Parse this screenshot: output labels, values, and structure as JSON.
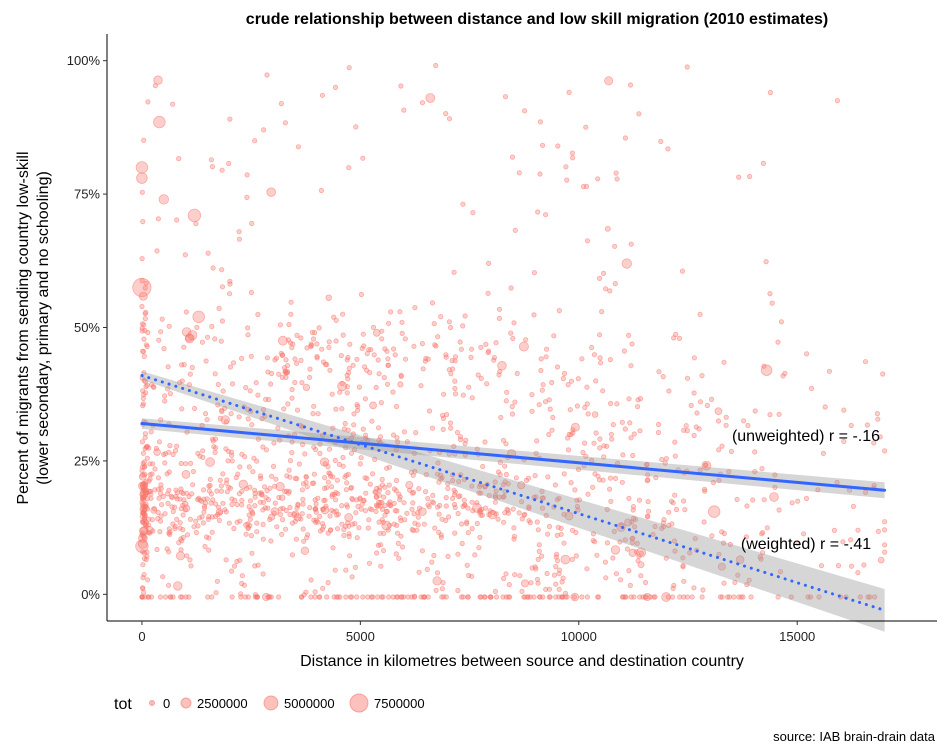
{
  "chart_data": {
    "type": "scatter",
    "title": "crude relationship between distance and low skill migration (2010 estimates)",
    "xlabel": "Distance in kilometres between source and destination country",
    "ylabel_lines": [
      "Percent of migrants from sending country low-skill",
      "(lower secondary, primary and no schooling)"
    ],
    "xlim": [
      -800,
      18200
    ],
    "ylim": [
      -0.05,
      1.05
    ],
    "x_ticks": [
      0,
      5000,
      10000,
      15000
    ],
    "x_tick_labels": [
      "0",
      "5000",
      "10000",
      "15000"
    ],
    "y_ticks": [
      0,
      0.25,
      0.5,
      0.75,
      1.0
    ],
    "y_tick_labels": [
      "0%",
      "25%",
      "50%",
      "75%",
      "100%"
    ],
    "grid": false,
    "point_color": "#f8766d",
    "trend_lines": [
      {
        "name": "unweighted",
        "style": "solid",
        "color": "#3366ff",
        "x": [
          0,
          17000
        ],
        "y": [
          0.32,
          0.195
        ],
        "ci_halfwidth": [
          0.01,
          0.015
        ]
      },
      {
        "name": "weighted",
        "style": "dotted",
        "color": "#3366ff",
        "x": [
          0,
          17000
        ],
        "y": [
          0.41,
          -0.03
        ],
        "ci_halfwidth": [
          0.008,
          0.04
        ]
      }
    ],
    "annotations": [
      {
        "text": "(unweighted) r = -.16",
        "x": 14800,
        "y": 0.29
      },
      {
        "text": "(weighted) r = -.41",
        "x": 14800,
        "y": 0.095
      }
    ],
    "legend": {
      "title": "tot",
      "position": "bottom-left",
      "entries": [
        {
          "label": "0",
          "value": 0
        },
        {
          "label": "2500000",
          "value": 2500000
        },
        {
          "label": "5000000",
          "value": 5000000
        },
        {
          "label": "7500000",
          "value": 7500000
        }
      ]
    },
    "highlight_points": [
      {
        "x": 0,
        "y": 0.575,
        "tot": 7500000
      },
      {
        "x": 0,
        "y": 0.09,
        "tot": 2500000
      },
      {
        "x": 0,
        "y": 0.8,
        "tot": 2000000
      },
      {
        "x": 0,
        "y": 0.78,
        "tot": 1500000
      },
      {
        "x": 400,
        "y": 0.885,
        "tot": 2000000
      },
      {
        "x": 1200,
        "y": 0.71,
        "tot": 2500000
      },
      {
        "x": 1300,
        "y": 0.52,
        "tot": 2000000
      },
      {
        "x": 13100,
        "y": 0.155,
        "tot": 2000000
      },
      {
        "x": 14300,
        "y": 0.42,
        "tot": 1500000
      },
      {
        "x": 6600,
        "y": 0.93,
        "tot": 800000
      },
      {
        "x": 500,
        "y": 0.74,
        "tot": 1000000
      },
      {
        "x": 11100,
        "y": 0.62,
        "tot": 1000000
      }
    ],
    "scatter_summary": {
      "n_points": 1800,
      "x_range": [
        0,
        17000
      ],
      "y_range": [
        0,
        1
      ]
    }
  },
  "caption": "source: IAB brain-drain data"
}
